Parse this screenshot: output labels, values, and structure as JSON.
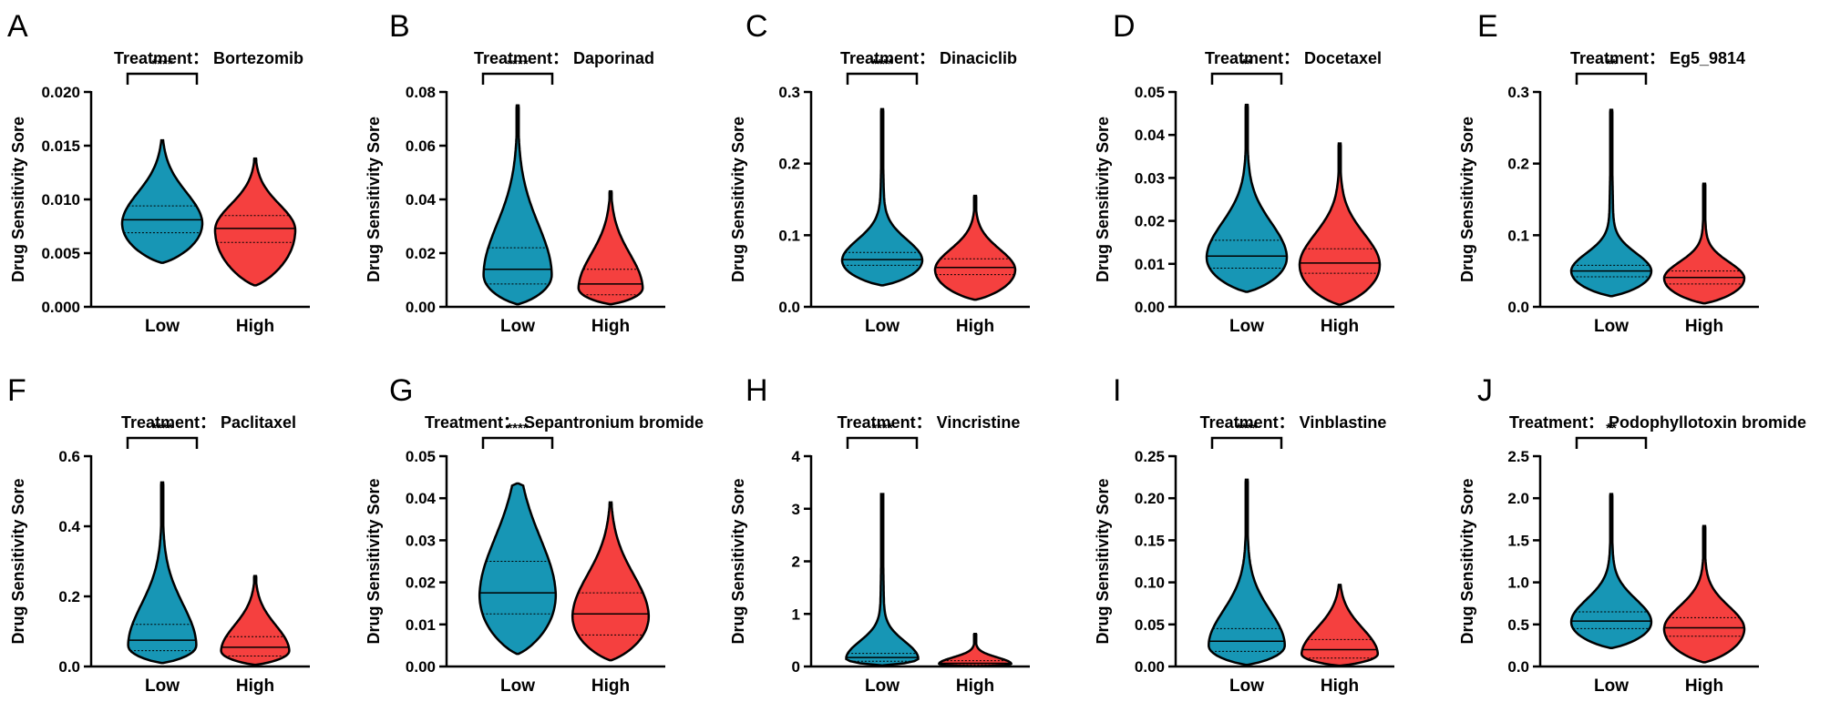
{
  "colors": {
    "low": "#1796b5",
    "high": "#f5403f",
    "stroke": "#000000"
  },
  "chart_data": [
    {
      "type": "violin",
      "letter": "A",
      "title": "Treatment： Bortezomib",
      "ylabel": "Drug Sensitivity Sore",
      "categories": [
        "Low",
        "High"
      ],
      "ylim": [
        0,
        0.02
      ],
      "yticks": [
        0.0,
        0.005,
        0.01,
        0.015,
        0.02
      ],
      "ytick_labels": [
        "0.000",
        "0.005",
        "0.010",
        "0.015",
        "0.020"
      ],
      "significance": "****",
      "groups": [
        {
          "name": "Low",
          "min": 0.0041,
          "q1": 0.0069,
          "median": 0.0081,
          "q3": 0.0094,
          "max": 0.0155,
          "peak": 0.0078,
          "width": 1.0
        },
        {
          "name": "High",
          "min": 0.002,
          "q1": 0.006,
          "median": 0.0073,
          "q3": 0.0085,
          "max": 0.0138,
          "peak": 0.0072,
          "width": 1.0
        }
      ]
    },
    {
      "type": "violin",
      "letter": "B",
      "title": "Treatment： Daporinad",
      "ylabel": "Drug Sensitivity Sore",
      "categories": [
        "Low",
        "High"
      ],
      "ylim": [
        0,
        0.08
      ],
      "yticks": [
        0.0,
        0.02,
        0.04,
        0.06,
        0.08
      ],
      "ytick_labels": [
        "0.00",
        "0.02",
        "0.04",
        "0.06",
        "0.08"
      ],
      "significance": "****",
      "groups": [
        {
          "name": "Low",
          "min": 0.001,
          "q1": 0.0085,
          "median": 0.014,
          "q3": 0.022,
          "max": 0.075,
          "peak": 0.012,
          "width": 0.85
        },
        {
          "name": "High",
          "min": 0.001,
          "q1": 0.0045,
          "median": 0.0085,
          "q3": 0.014,
          "max": 0.043,
          "peak": 0.007,
          "width": 0.8
        }
      ]
    },
    {
      "type": "violin",
      "letter": "C",
      "title": "Treatment： Dinaciclib",
      "ylabel": "Drug Sensitivity Sore",
      "categories": [
        "Low",
        "High"
      ],
      "ylim": [
        0,
        0.3
      ],
      "yticks": [
        0.0,
        0.1,
        0.2,
        0.3
      ],
      "ytick_labels": [
        "0.0",
        "0.1",
        "0.2",
        "0.3"
      ],
      "significance": "****",
      "groups": [
        {
          "name": "Low",
          "min": 0.03,
          "q1": 0.058,
          "median": 0.066,
          "q3": 0.076,
          "max": 0.276,
          "peak": 0.065,
          "width": 1.0
        },
        {
          "name": "High",
          "min": 0.01,
          "q1": 0.045,
          "median": 0.055,
          "q3": 0.067,
          "max": 0.155,
          "peak": 0.052,
          "width": 1.0
        }
      ]
    },
    {
      "type": "violin",
      "letter": "D",
      "title": "Treatment： Docetaxel",
      "ylabel": "Drug Sensitivity Sore",
      "categories": [
        "Low",
        "High"
      ],
      "ylim": [
        0,
        0.05
      ],
      "yticks": [
        0.0,
        0.01,
        0.02,
        0.03,
        0.04,
        0.05
      ],
      "ytick_labels": [
        "0.00",
        "0.01",
        "0.02",
        "0.03",
        "0.04",
        "0.05"
      ],
      "significance": "**",
      "groups": [
        {
          "name": "Low",
          "min": 0.0035,
          "q1": 0.009,
          "median": 0.0118,
          "q3": 0.0155,
          "max": 0.047,
          "peak": 0.0115,
          "width": 1.0
        },
        {
          "name": "High",
          "min": 0.0005,
          "q1": 0.0078,
          "median": 0.0102,
          "q3": 0.0135,
          "max": 0.038,
          "peak": 0.0098,
          "width": 1.0
        }
      ]
    },
    {
      "type": "violin",
      "letter": "E",
      "title": "Treatment： Eg5_9814",
      "ylabel": "Drug Sensitivity Sore",
      "categories": [
        "Low",
        "High"
      ],
      "ylim": [
        0,
        0.3
      ],
      "yticks": [
        0.0,
        0.1,
        0.2,
        0.3
      ],
      "ytick_labels": [
        "0.0",
        "0.1",
        "0.2",
        "0.3"
      ],
      "significance": "**",
      "groups": [
        {
          "name": "Low",
          "min": 0.015,
          "q1": 0.042,
          "median": 0.05,
          "q3": 0.058,
          "max": 0.275,
          "peak": 0.05,
          "width": 1.0
        },
        {
          "name": "High",
          "min": 0.005,
          "q1": 0.032,
          "median": 0.041,
          "q3": 0.05,
          "max": 0.172,
          "peak": 0.04,
          "width": 1.0
        }
      ]
    },
    {
      "type": "violin",
      "letter": "F",
      "title": "Treatment： Paclitaxel",
      "ylabel": "Drug Sensitivity Sore",
      "categories": [
        "Low",
        "High"
      ],
      "ylim": [
        0,
        0.6
      ],
      "yticks": [
        0.0,
        0.2,
        0.4,
        0.6
      ],
      "ytick_labels": [
        "0.0",
        "0.2",
        "0.4",
        "0.6"
      ],
      "significance": "****",
      "groups": [
        {
          "name": "Low",
          "min": 0.01,
          "q1": 0.045,
          "median": 0.075,
          "q3": 0.12,
          "max": 0.525,
          "peak": 0.06,
          "width": 0.85
        },
        {
          "name": "High",
          "min": 0.005,
          "q1": 0.03,
          "median": 0.055,
          "q3": 0.085,
          "max": 0.258,
          "peak": 0.045,
          "width": 0.85
        }
      ]
    },
    {
      "type": "violin",
      "letter": "G",
      "title": "Treatment： Sepantronium bromide",
      "ylabel": "Drug Sensitivity Sore",
      "categories": [
        "Low",
        "High"
      ],
      "ylim": [
        0,
        0.05
      ],
      "yticks": [
        0.0,
        0.01,
        0.02,
        0.03,
        0.04,
        0.05
      ],
      "ytick_labels": [
        "0.00",
        "0.01",
        "0.02",
        "0.03",
        "0.04",
        "0.05"
      ],
      "significance": "****",
      "groups": [
        {
          "name": "Low",
          "min": 0.003,
          "q1": 0.0125,
          "median": 0.0175,
          "q3": 0.025,
          "max": 0.0435,
          "peak": 0.017,
          "width": 0.95
        },
        {
          "name": "High",
          "min": 0.0015,
          "q1": 0.0075,
          "median": 0.0125,
          "q3": 0.0175,
          "max": 0.039,
          "peak": 0.012,
          "width": 0.95
        }
      ]
    },
    {
      "type": "violin",
      "letter": "H",
      "title": "Treatment： Vincristine",
      "ylabel": "Drug Sensitivity Sore",
      "categories": [
        "Low",
        "High"
      ],
      "ylim": [
        0,
        4
      ],
      "yticks": [
        0,
        1,
        2,
        3,
        4
      ],
      "ytick_labels": [
        "0",
        "1",
        "2",
        "3",
        "4"
      ],
      "significance": "****",
      "groups": [
        {
          "name": "Low",
          "min": 0.02,
          "q1": 0.1,
          "median": 0.17,
          "q3": 0.25,
          "max": 3.28,
          "peak": 0.15,
          "width": 0.9
        },
        {
          "name": "High",
          "min": 0.005,
          "q1": 0.03,
          "median": 0.06,
          "q3": 0.11,
          "max": 0.62,
          "peak": 0.05,
          "width": 0.9
        }
      ]
    },
    {
      "type": "violin",
      "letter": "I",
      "title": "Treatment： Vinblastine",
      "ylabel": "Drug Sensitivity Sore",
      "categories": [
        "Low",
        "High"
      ],
      "ylim": [
        0,
        0.25
      ],
      "yticks": [
        0.0,
        0.05,
        0.1,
        0.15,
        0.2,
        0.25
      ],
      "ytick_labels": [
        "0.00",
        "0.05",
        "0.10",
        "0.15",
        "0.20",
        "0.25"
      ],
      "significance": "****",
      "groups": [
        {
          "name": "Low",
          "min": 0.002,
          "q1": 0.018,
          "median": 0.03,
          "q3": 0.045,
          "max": 0.222,
          "peak": 0.025,
          "width": 0.95
        },
        {
          "name": "High",
          "min": 0.001,
          "q1": 0.01,
          "median": 0.02,
          "q3": 0.032,
          "max": 0.097,
          "peak": 0.015,
          "width": 0.95
        }
      ]
    },
    {
      "type": "violin",
      "letter": "J",
      "title": "Treatment： Podophyllotoxin bromide",
      "ylabel": "Drug Sensitivity Sore",
      "categories": [
        "Low",
        "High"
      ],
      "ylim": [
        0,
        2.5
      ],
      "yticks": [
        0.0,
        0.5,
        1.0,
        1.5,
        2.0,
        2.5
      ],
      "ytick_labels": [
        "0.0",
        "0.5",
        "1.0",
        "1.5",
        "2.0",
        "2.5"
      ],
      "significance": "**",
      "groups": [
        {
          "name": "Low",
          "min": 0.22,
          "q1": 0.45,
          "median": 0.54,
          "q3": 0.65,
          "max": 2.05,
          "peak": 0.53,
          "width": 1.0
        },
        {
          "name": "High",
          "min": 0.05,
          "q1": 0.36,
          "median": 0.46,
          "q3": 0.58,
          "max": 1.67,
          "peak": 0.45,
          "width": 1.0
        }
      ]
    }
  ]
}
